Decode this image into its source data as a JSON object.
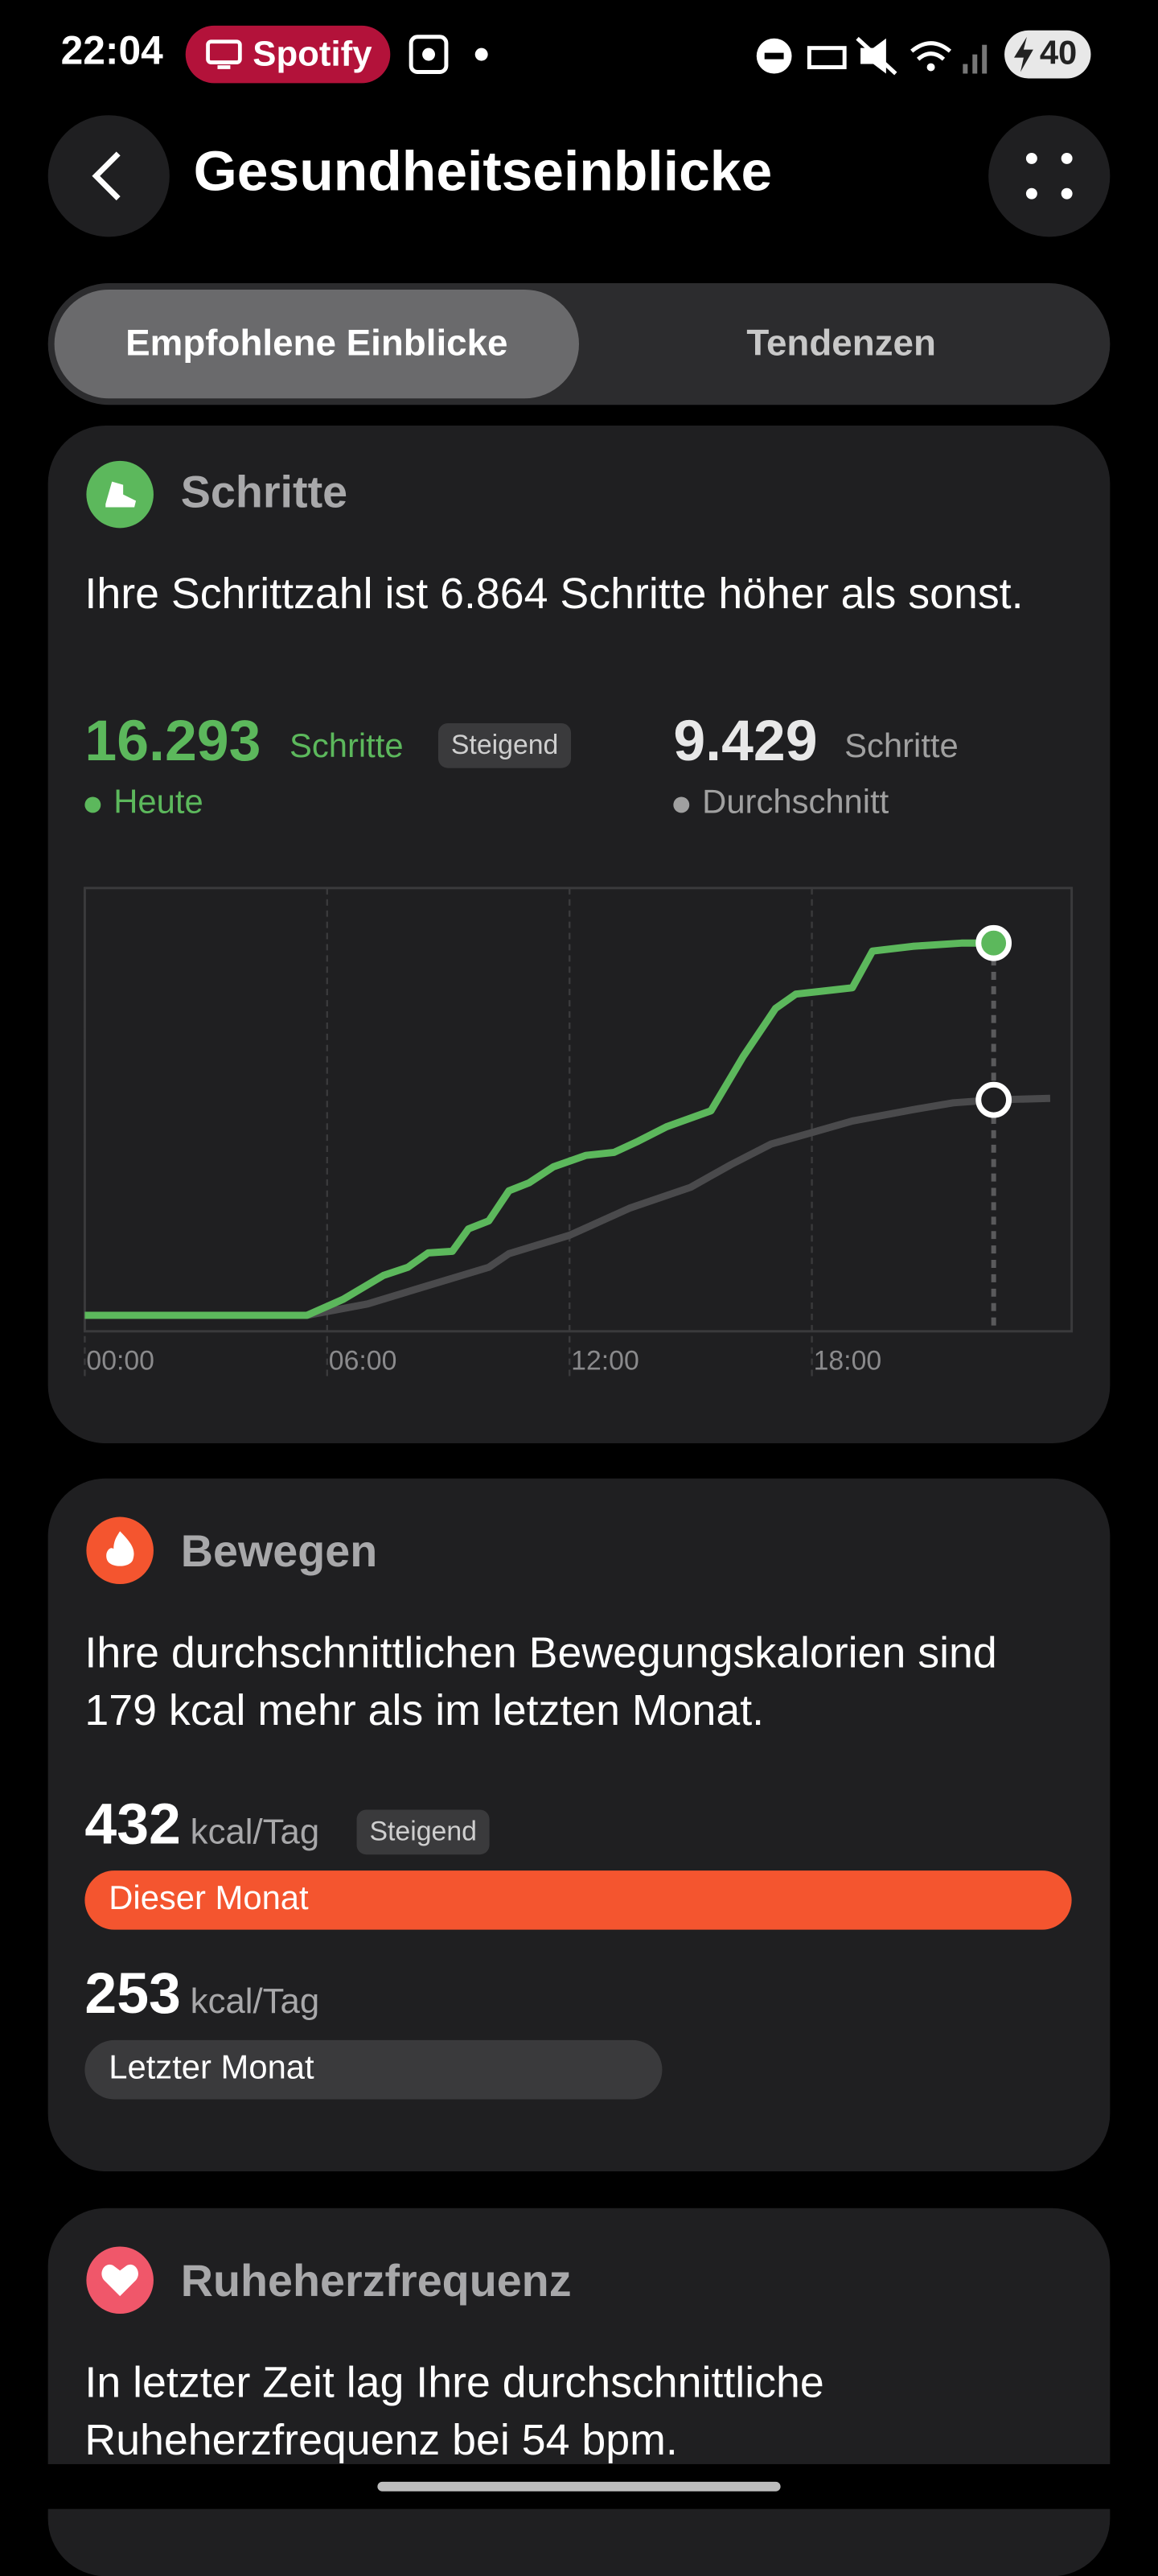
{
  "status_bar": {
    "time": "22:04",
    "app": "Spotify",
    "battery": "40"
  },
  "header": {
    "title": "Gesundheitseinblicke"
  },
  "tabs": [
    "Empfohlene Einblicke",
    "Tendenzen"
  ],
  "cards": [
    {
      "title": "Schritte",
      "text": "Ihre Schrittzahl ist 6.864 Schritte höher als sonst.",
      "today": {
        "value": "16.293",
        "unit": "Schritte",
        "badge": "Steigend",
        "label": "Heute"
      },
      "average": {
        "value": "9.429",
        "unit": "Schritte",
        "label": "Durchschnitt"
      },
      "chart": {
        "type": "line",
        "xlim": [
          0,
          24.43
        ],
        "ylim": [
          -700,
          18700
        ],
        "xticks": [
          {
            "value": 0,
            "label": "00:00"
          },
          {
            "value": 6,
            "label": "06:00"
          },
          {
            "value": 12,
            "label": "12:00"
          },
          {
            "value": 18,
            "label": "18:00"
          }
        ],
        "series": [
          {
            "color": "#5cb85c",
            "x": [
              0,
              5.5,
              6.4,
              7.4,
              8.0,
              8.5,
              9.1,
              9.5,
              10.0,
              10.5,
              11.0,
              11.6,
              12.4,
              13.1,
              13.7,
              14.4,
              15.5,
              16.3,
              17.1,
              17.6,
              19.0,
              19.5,
              20.5,
              21.7,
              22.5
            ],
            "values": [
              0,
              0,
              700,
              1750,
              2100,
              2730,
              2800,
              3780,
              4130,
              5450,
              5800,
              6500,
              7000,
              7130,
              7620,
              8250,
              8950,
              11330,
              13430,
              14060,
              14340,
              15940,
              16150,
              16293,
              16293
            ]
          },
          {
            "color": "#4a4a4c",
            "x": [
              0,
              5.5,
              7,
              8.5,
              10,
              10.5,
              12,
              13.5,
              15,
              16,
              17,
              18,
              19,
              20.5,
              21.5,
              22.5,
              23.9
            ],
            "values": [
              0,
              0,
              500,
              1300,
              2100,
              2700,
              3500,
              4700,
              5600,
              6600,
              7500,
              8000,
              8500,
              9000,
              9300,
              9429,
              9500
            ]
          }
        ]
      }
    },
    {
      "title": "Bewegen",
      "text": "Ihre durchschnittlichen Bewegungskalorien sind 179 kcal mehr als im letzten Monat.",
      "unit": "kcal/Tag",
      "badge": "Steigend",
      "xlim": [
        0,
        432
      ],
      "values": [
        432,
        253
      ],
      "labels": [
        "Dieser Monat",
        "Letzter Monat"
      ],
      "colors": [
        "#f4552f",
        "#3a3a3c"
      ]
    },
    {
      "title": "Ruheherzfrequenz",
      "text": "In letzter Zeit lag Ihre durchschnittliche Ruheherzfrequenz bei 54 bpm."
    }
  ]
}
